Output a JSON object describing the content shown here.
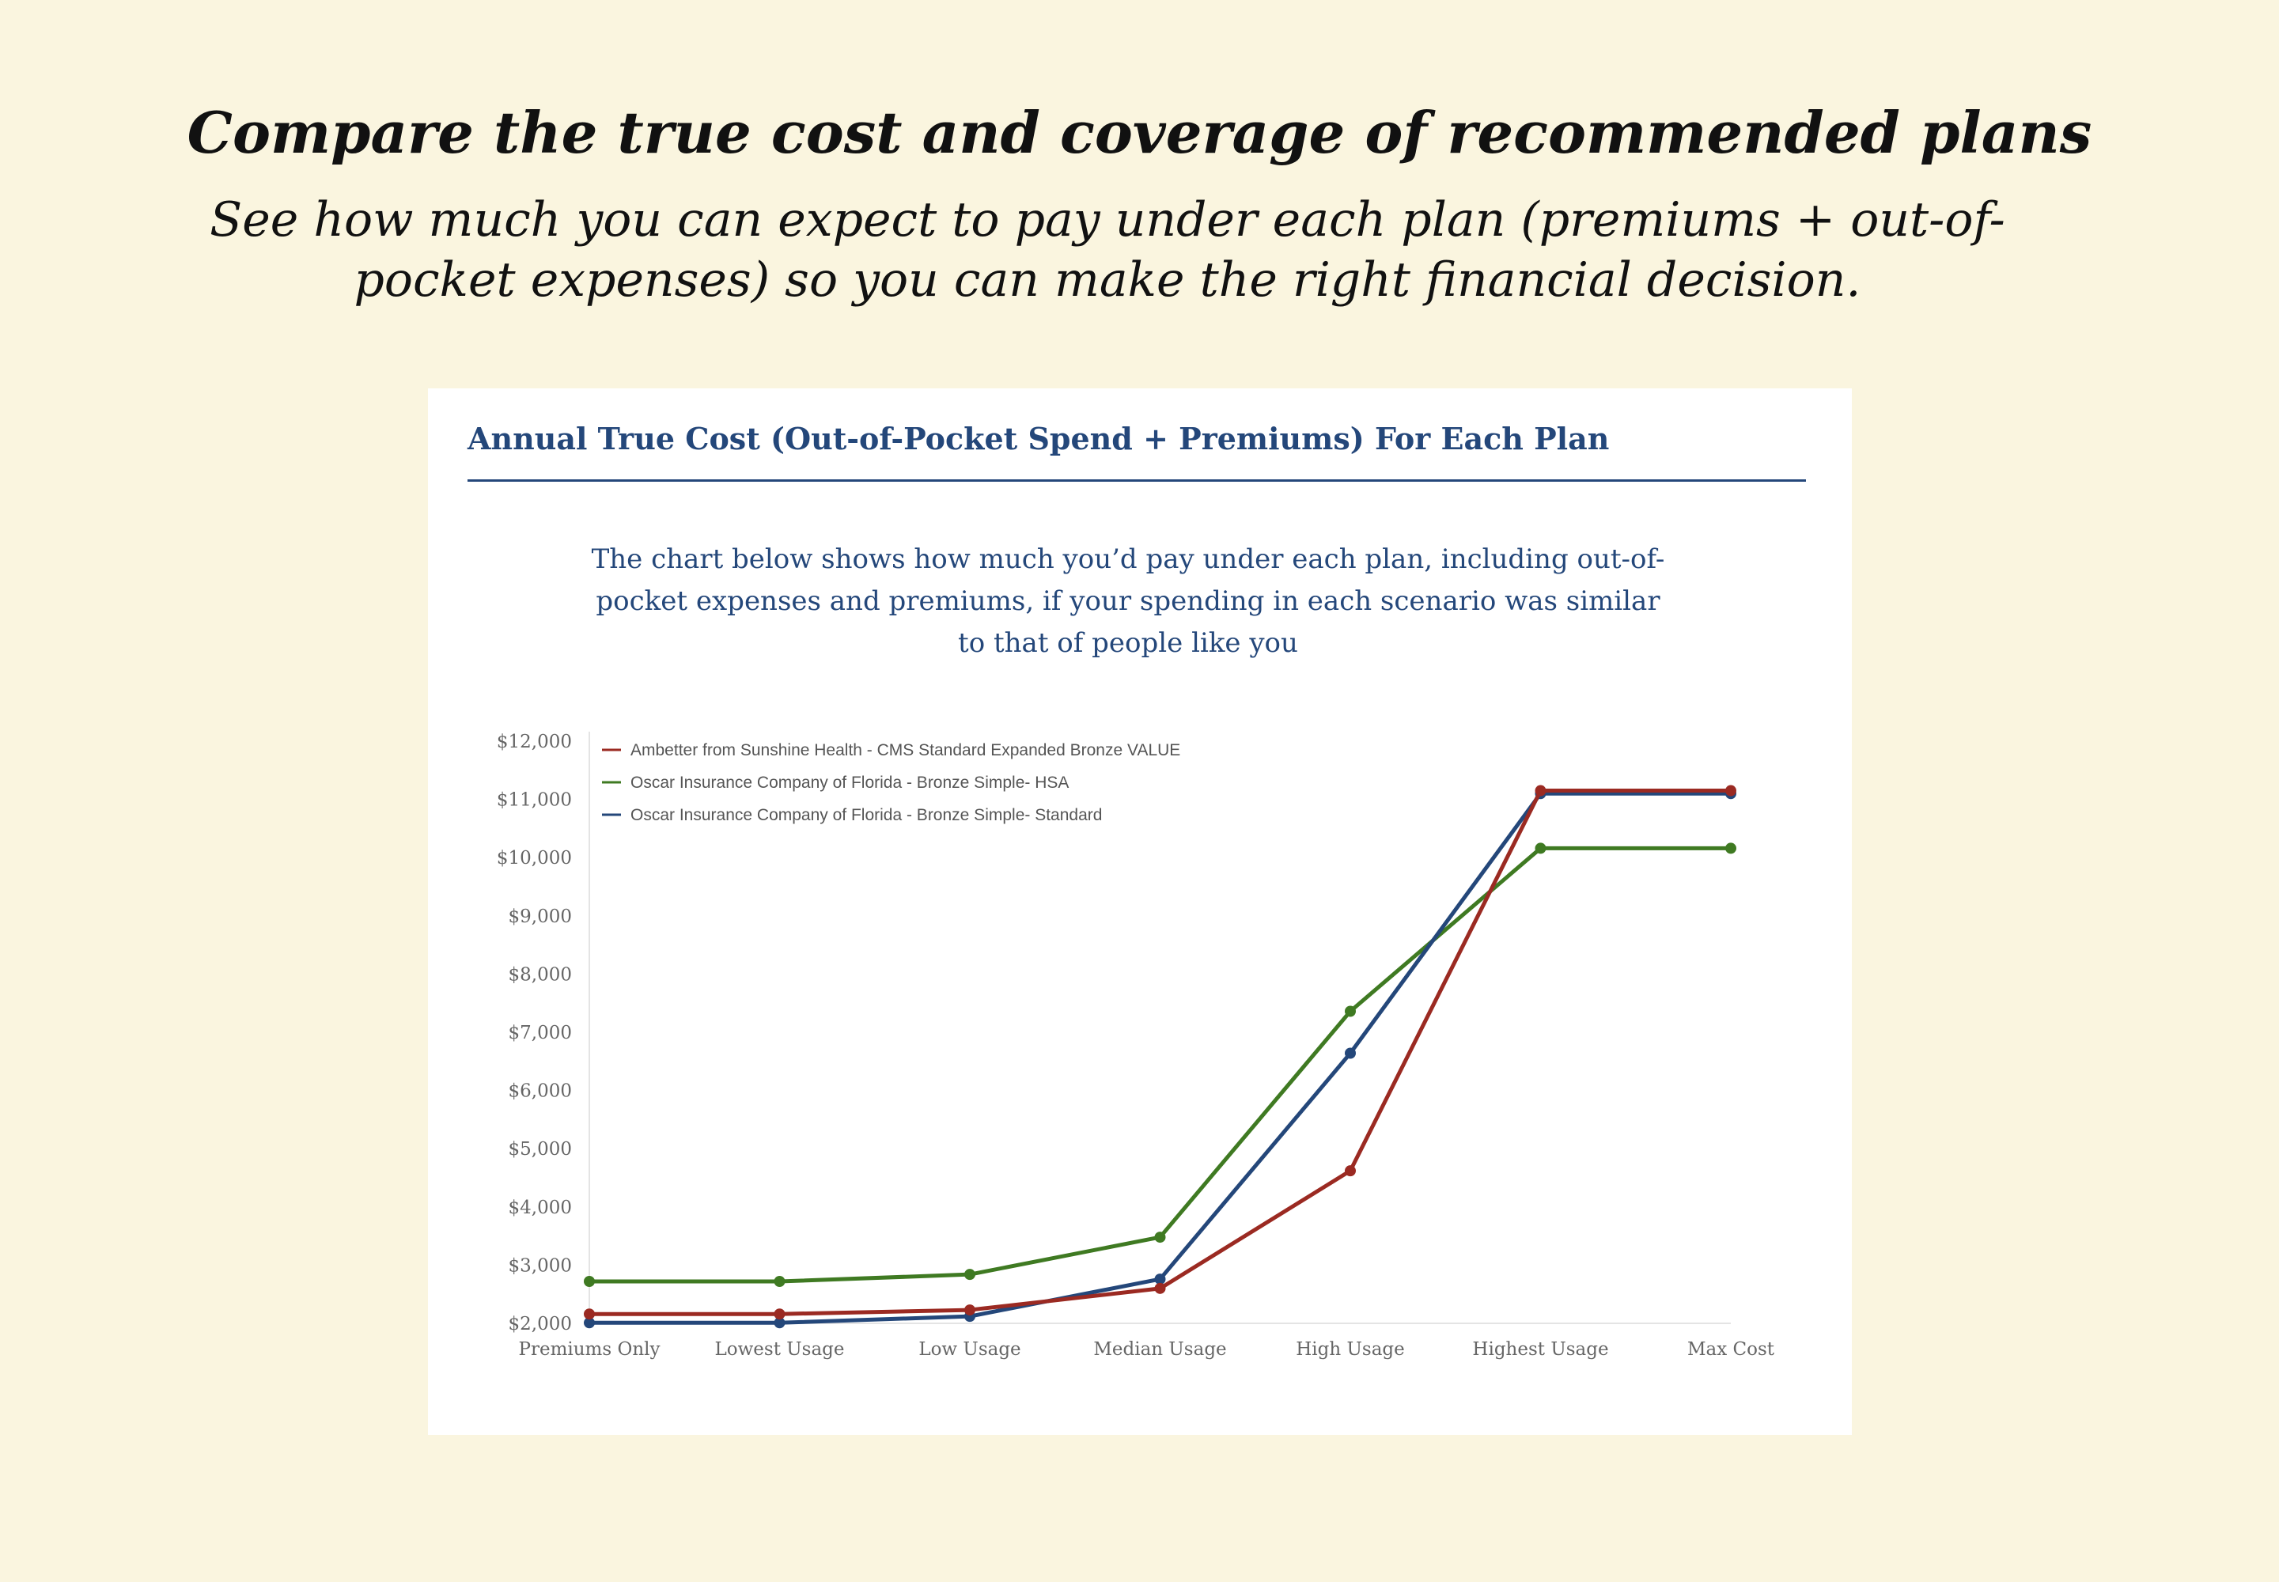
{
  "header": {
    "title": "Compare the true cost and coverage of recommended plans",
    "subtitle": "See how much you can expect to pay under each plan (premiums + out-of-pocket expenses) so you can make the right financial decision."
  },
  "card": {
    "title": "Annual True Cost (Out-of-Pocket Spend + Premiums) For Each Plan",
    "description": "The chart below shows how much you’d pay under each plan, including out-of-pocket expenses and premiums, if your spending in each scenario was similar to that of people like you"
  },
  "colors": {
    "background": "#faf5df",
    "heading": "#24477a",
    "ambetter": "#9b2a22",
    "oscar_hsa": "#3f7a22",
    "oscar_standard": "#24477a"
  },
  "chart_data": {
    "type": "line",
    "title": "Annual True Cost (Out-of-Pocket Spend + Premiums) For Each Plan",
    "xlabel": "",
    "ylabel": "",
    "categories": [
      "Premiums Only",
      "Lowest Usage",
      "Low Usage",
      "Median Usage",
      "High Usage",
      "Highest Usage",
      "Max Cost"
    ],
    "ylim": [
      2000,
      12000
    ],
    "yticks": [
      2000,
      3000,
      4000,
      5000,
      6000,
      7000,
      8000,
      9000,
      10000,
      11000,
      12000
    ],
    "ytick_labels": [
      "$2,000",
      "$3,000",
      "$4,000",
      "$5,000",
      "$6,000",
      "$7,000",
      "$8,000",
      "$9,000",
      "$10,000",
      "$11,000",
      "$12,000"
    ],
    "grid": false,
    "legend_position": "top-left",
    "series": [
      {
        "name": "Ambetter from Sunshine Health - CMS Standard Expanded Bronze VALUE",
        "color": "#9b2a22",
        "values": [
          2160,
          2160,
          2230,
          2600,
          4620,
          11150,
          11150
        ]
      },
      {
        "name": "Oscar Insurance Company of Florida - Bronze Simple- HSA",
        "color": "#3f7a22",
        "values": [
          2720,
          2720,
          2840,
          3480,
          7360,
          10160,
          10160
        ]
      },
      {
        "name": "Oscar Insurance Company of Florida - Bronze Simple- Standard",
        "color": "#24477a",
        "values": [
          2010,
          2010,
          2120,
          2760,
          6640,
          11100,
          11100
        ]
      }
    ]
  }
}
